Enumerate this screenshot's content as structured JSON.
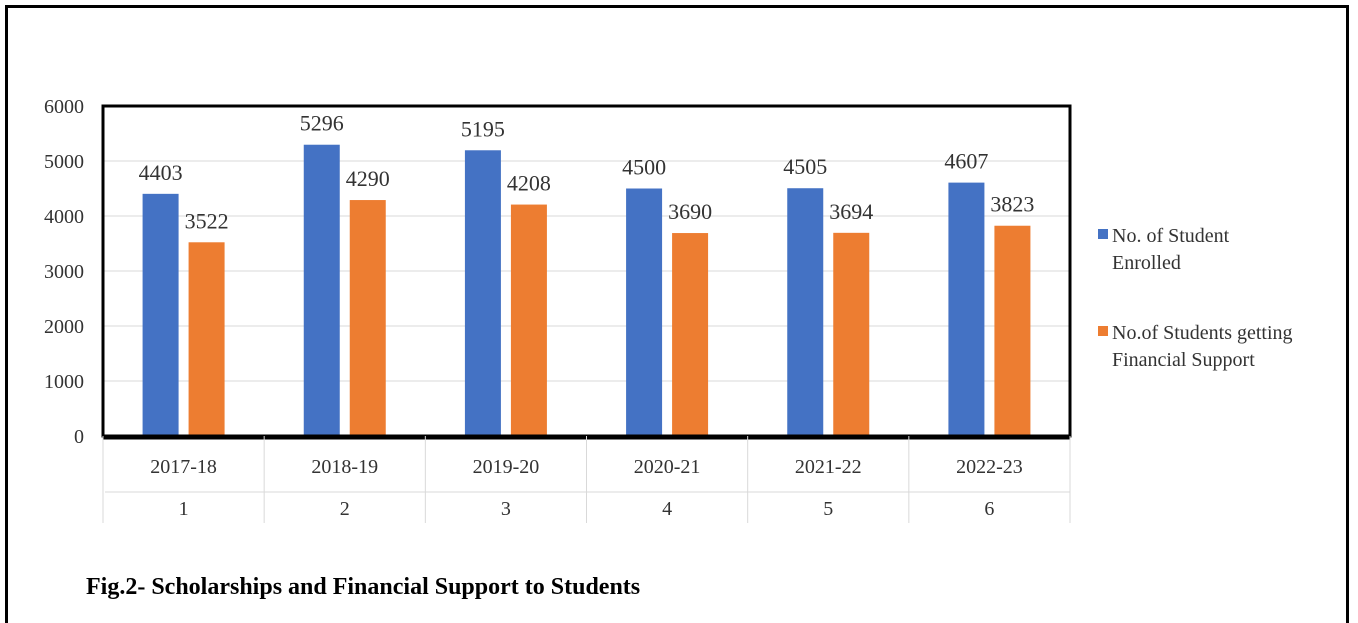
{
  "caption": "Fig.2- Scholarships and Financial Support to Students",
  "chart_data": {
    "type": "bar",
    "categories": [
      "2017-18",
      "2018-19",
      "2019-20",
      "2020-21",
      "2021-22",
      "2022-23"
    ],
    "categories_secondary": [
      "1",
      "2",
      "3",
      "4",
      "5",
      "6"
    ],
    "series": [
      {
        "name": "No. of Student Enrolled",
        "color": "#4472C4",
        "values": [
          4403,
          5296,
          5195,
          4500,
          4505,
          4607
        ]
      },
      {
        "name": "No.of Students getting Financial Support",
        "color": "#ED7D31",
        "values": [
          3522,
          4290,
          4208,
          3690,
          3694,
          3823
        ]
      }
    ],
    "ylim": [
      0,
      6000
    ],
    "yticks": [
      0,
      1000,
      2000,
      3000,
      4000,
      5000,
      6000
    ],
    "grid": true,
    "data_labels": true,
    "legend_position": "right"
  }
}
